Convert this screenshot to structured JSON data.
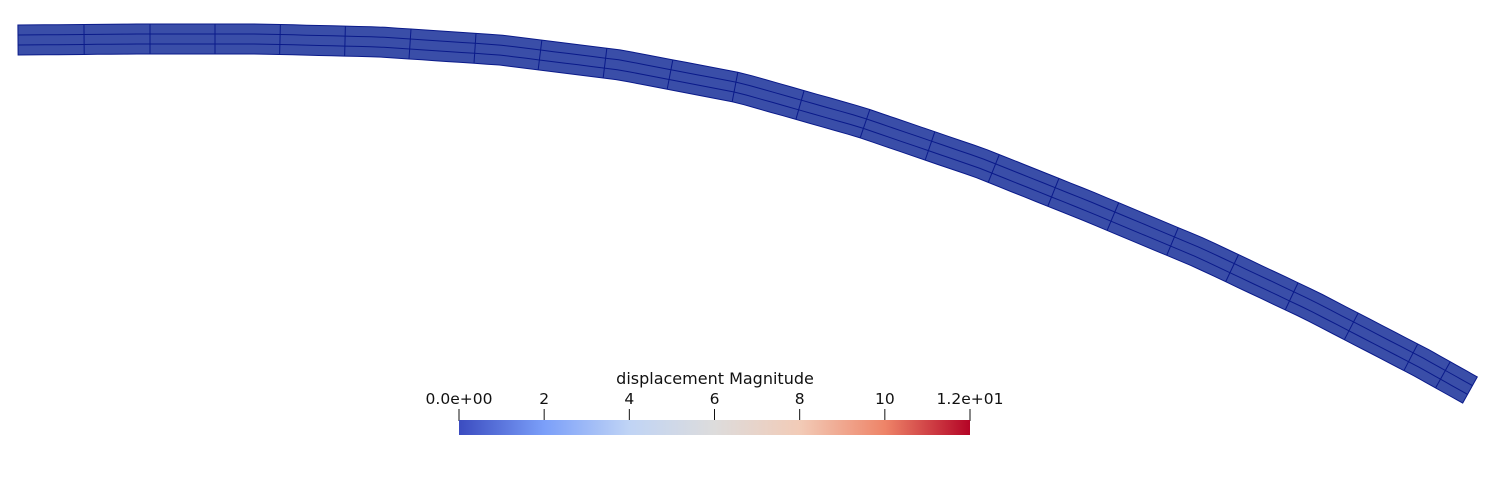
{
  "beam": {
    "fill_color": "#3a4ea8",
    "edge_color": "#0a1a8a"
  },
  "colorbar": {
    "title": "displacement Magnitude",
    "range": [
      0,
      12
    ],
    "ticks": [
      {
        "value": 0,
        "label": "0.0e+00"
      },
      {
        "value": 2,
        "label": "2"
      },
      {
        "value": 4,
        "label": "4"
      },
      {
        "value": 6,
        "label": "6"
      },
      {
        "value": 8,
        "label": "8"
      },
      {
        "value": 10,
        "label": "10"
      },
      {
        "value": 12,
        "label": "1.2e+01"
      }
    ],
    "gradient": [
      "#3b4cc0",
      "#7b9ff9",
      "#c0d4f5",
      "#dddcdc",
      "#f2cbb7",
      "#ee8468",
      "#b40426"
    ]
  }
}
